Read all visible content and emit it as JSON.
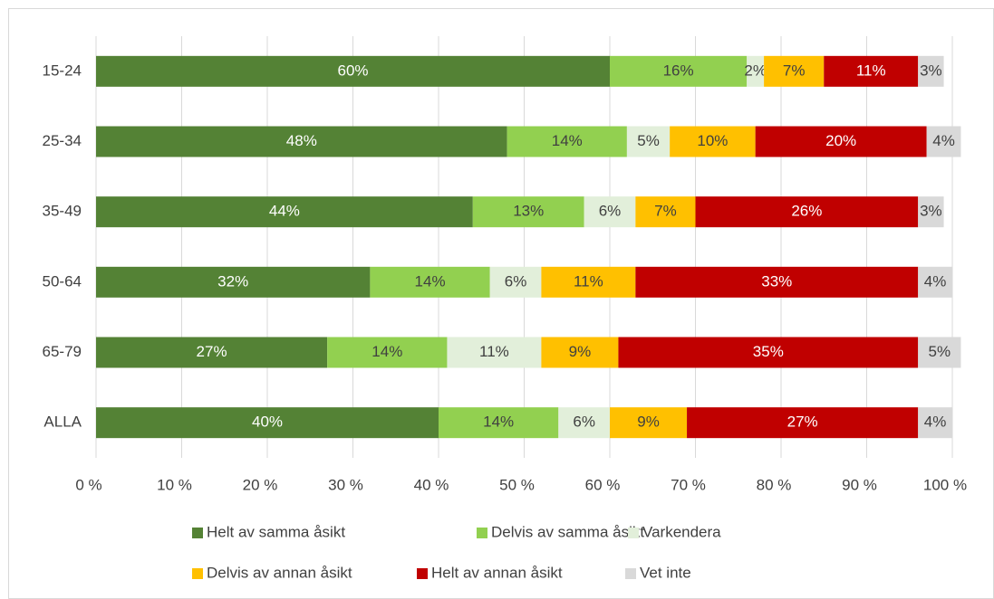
{
  "chart_data": {
    "type": "stacked-bar-horizontal",
    "categories": [
      "15-24",
      "25-34",
      "35-49",
      "50-64",
      "65-79",
      "ALLA"
    ],
    "series": [
      {
        "name": "Helt av samma åsikt",
        "color": "#548235",
        "values": [
          60,
          48,
          44,
          32,
          27,
          40
        ],
        "value_labels": [
          "60%",
          "48%",
          "44%",
          "32%",
          "27%",
          "40%"
        ]
      },
      {
        "name": "Delvis av samma åsikt",
        "color": "#92d050",
        "values": [
          16,
          14,
          13,
          14,
          14,
          14
        ],
        "value_labels": [
          "16%",
          "14%",
          "13%",
          "14%",
          "14%",
          "14%"
        ]
      },
      {
        "name": "Varkendera",
        "color": "#e2efda",
        "values": [
          2,
          5,
          6,
          6,
          11,
          6
        ],
        "value_labels": [
          "2%",
          "5%",
          "6%",
          "6%",
          "11%",
          "6%"
        ]
      },
      {
        "name": "Delvis av annan åsikt",
        "color": "#ffc000",
        "values": [
          7,
          10,
          7,
          11,
          9,
          9
        ],
        "value_labels": [
          "7%",
          "10%",
          "7%",
          "11%",
          "9%",
          "9%"
        ]
      },
      {
        "name": "Helt av annan åsikt",
        "color": "#c00000",
        "values": [
          11,
          20,
          26,
          33,
          35,
          27
        ],
        "value_labels": [
          "11%",
          "20%",
          "26%",
          "33%",
          "35%",
          "27%"
        ]
      },
      {
        "name": "Vet inte",
        "color": "#d9d9d9",
        "values": [
          3,
          4,
          3,
          4,
          5,
          4
        ],
        "value_labels": [
          "3%",
          "4%",
          "3%",
          "4%",
          "5%",
          "4%"
        ]
      }
    ],
    "xlim": [
      0,
      100
    ],
    "xticks": [
      {
        "value": 0,
        "label": "0 %"
      },
      {
        "value": 10,
        "label": "10 %"
      },
      {
        "value": 20,
        "label": "20 %"
      },
      {
        "value": 30,
        "label": "30 %"
      },
      {
        "value": 40,
        "label": "40 %"
      },
      {
        "value": 50,
        "label": "50 %"
      },
      {
        "value": 60,
        "label": "60 %"
      },
      {
        "value": 70,
        "label": "70 %"
      },
      {
        "value": 80,
        "label": "80 %"
      },
      {
        "value": 90,
        "label": "90 %"
      },
      {
        "value": 100,
        "label": "100 %"
      }
    ],
    "grid": true,
    "legend": "bottom"
  }
}
